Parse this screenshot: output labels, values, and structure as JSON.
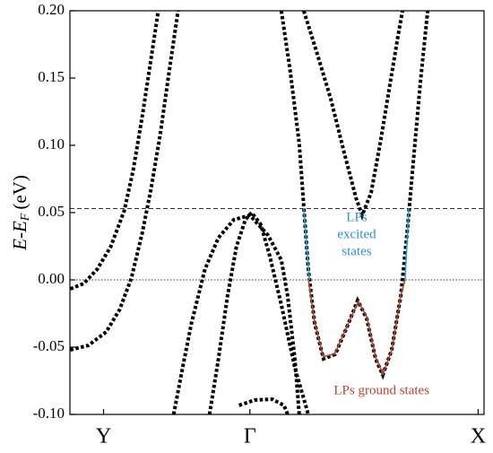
{
  "chart_data": {
    "type": "band-structure",
    "ylabel": "E-E",
    "ylabel_sub": "F",
    "ylabel_unit": "(eV)",
    "xlim": [
      -0.23,
      2.6
    ],
    "xticks": [
      {
        "value": 0,
        "label": "Y"
      },
      {
        "value": 1,
        "label": "Γ"
      },
      {
        "value": 2.56,
        "label": "X"
      }
    ],
    "ylim": [
      -0.1,
      0.2
    ],
    "yticks": [
      {
        "value": -0.1,
        "label": "-0.10"
      },
      {
        "value": -0.05,
        "label": "-0.05"
      },
      {
        "value": 0,
        "label": "0.00"
      },
      {
        "value": 0.05,
        "label": "0.05"
      },
      {
        "value": 0.1,
        "label": "0.10"
      },
      {
        "value": 0.15,
        "label": "0.15"
      },
      {
        "value": 0.2,
        "label": "0.20"
      }
    ],
    "hlines": [
      {
        "value": 0.053,
        "style": "dashed"
      },
      {
        "value": 0,
        "style": "dotted"
      }
    ],
    "series": [
      {
        "color": "#000000",
        "style": "dotted",
        "x": [
          -0.227,
          -0.135,
          -0.043,
          0.049,
          0.141,
          0.202,
          0.264,
          0.325,
          0.374
        ],
        "values": [
          -0.0067,
          -0.0027,
          0.008,
          0.0247,
          0.0513,
          0.0813,
          0.1213,
          0.1647,
          0.2
        ]
      },
      {
        "color": "#000000",
        "style": "dotted",
        "x": [
          -0.227,
          -0.104,
          0.018,
          0.11,
          0.19,
          0.264,
          0.325,
          0.387,
          0.448,
          0.509
        ],
        "values": [
          -0.052,
          -0.0487,
          -0.0387,
          -0.022,
          0.0013,
          0.0347,
          0.068,
          0.108,
          0.1547,
          0.2
        ]
      },
      {
        "color": "#000000",
        "style": "dotted",
        "x": [
          0.479,
          0.54,
          0.601,
          0.693,
          0.785,
          0.89,
          1.0,
          1.123,
          1.215,
          1.258,
          1.307,
          1.337
        ],
        "values": [
          -0.1,
          -0.0653,
          -0.032,
          0.008,
          0.0313,
          0.0447,
          0.048,
          0.0333,
          0.0147,
          -0.012,
          -0.0587,
          -0.1
        ]
      },
      {
        "color": "#000000",
        "style": "dotted",
        "x": [
          0.724,
          0.785,
          0.847,
          0.908,
          0.969,
          1.012,
          1.074,
          1.135,
          1.215,
          1.307,
          1.399
        ],
        "values": [
          -0.1,
          -0.0587,
          -0.012,
          0.0247,
          0.0447,
          0.05,
          0.0413,
          0.018,
          -0.0187,
          -0.0653,
          -0.1
        ]
      },
      {
        "color": "#000000",
        "style": "dotted",
        "x": [
          0.926,
          1.031,
          1.153,
          1.233,
          1.258
        ],
        "values": [
          -0.0933,
          -0.0893,
          -0.0887,
          -0.0933,
          -0.1
        ]
      },
      {
        "color": "#000000",
        "style": "dotted",
        "x": [
          1.215,
          1.276,
          1.337,
          1.368,
          1.399,
          1.442,
          1.503,
          1.583,
          1.675,
          1.736,
          1.798,
          1.859,
          1.908,
          1.969,
          2.031,
          2.074,
          2.117,
          2.166,
          2.215
        ],
        "values": [
          0.2,
          0.1547,
          0.1013,
          0.0547,
          0.008,
          -0.032,
          -0.0587,
          -0.0553,
          -0.032,
          -0.0153,
          -0.0287,
          -0.0587,
          -0.0707,
          -0.052,
          -0.012,
          0.0347,
          0.088,
          0.148,
          0.2
        ]
      },
      {
        "color": "#000000",
        "style": "dotted",
        "x": [
          1.368,
          1.46,
          1.552,
          1.644,
          1.724,
          1.767,
          1.828,
          1.89,
          1.951,
          2.012,
          2.043
        ],
        "values": [
          0.2,
          0.168,
          0.1347,
          0.0947,
          0.0613,
          0.048,
          0.0647,
          0.1013,
          0.1413,
          0.1813,
          0.2
        ]
      },
      {
        "color": "#29a3d6",
        "style": "solid",
        "x": [
          1.368,
          1.406
        ],
        "values": [
          0.053,
          0.0
        ]
      },
      {
        "color": "#29a3d6",
        "style": "solid",
        "x": [
          2.086,
          2.06
        ],
        "values": [
          0.053,
          0.0
        ]
      },
      {
        "color": "#b5452f",
        "style": "solid",
        "x": [
          1.4,
          1.44,
          1.5,
          1.58,
          1.67,
          1.74,
          1.8,
          1.86,
          1.91,
          1.97,
          2.03,
          2.06
        ],
        "values": [
          0.0,
          -0.03,
          -0.057,
          -0.055,
          -0.033,
          -0.016,
          -0.028,
          -0.058,
          -0.07,
          -0.052,
          -0.012,
          0.0
        ]
      }
    ],
    "annotations": [
      {
        "lines": [
          "LPs",
          "excited",
          "states"
        ],
        "x": 1.73,
        "y": 0.033,
        "color": "#2f8fd0"
      },
      {
        "lines": [
          "LPs ground states"
        ],
        "x": 1.9,
        "y": -0.083,
        "color": "#b5452f"
      }
    ]
  }
}
